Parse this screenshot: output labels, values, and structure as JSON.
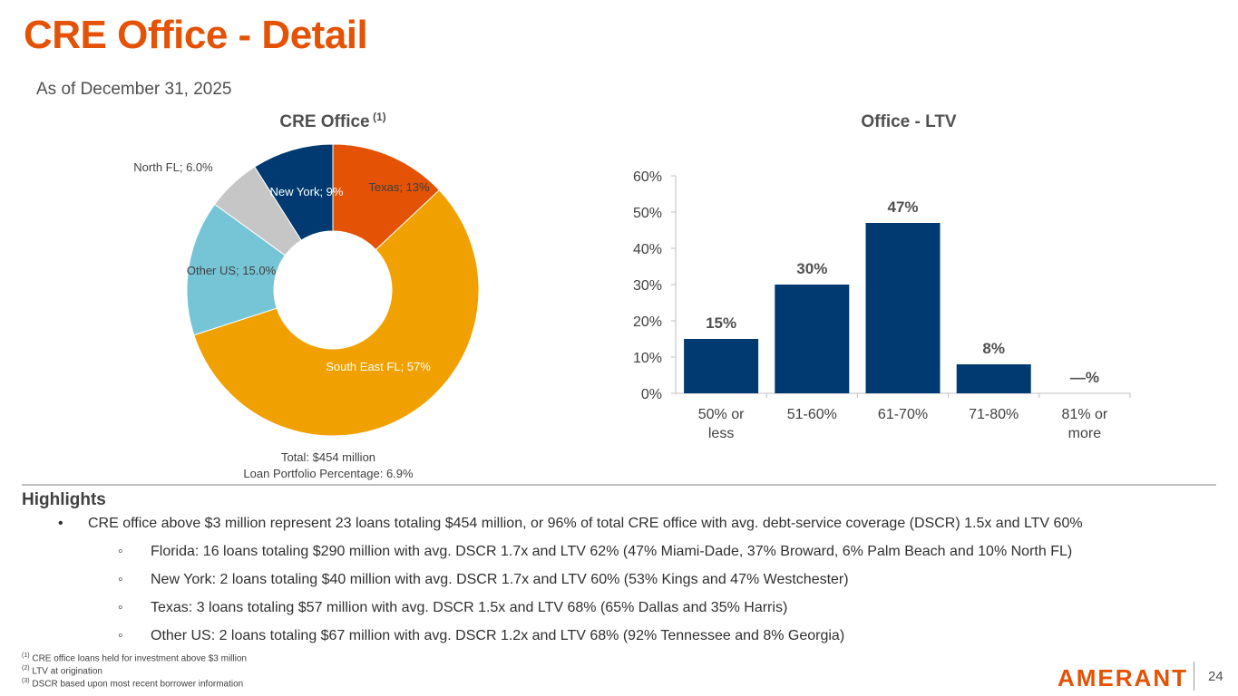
{
  "title": "CRE Office - Detail",
  "as_of": "As of December 31, 2025",
  "chart_data": [
    {
      "type": "pie",
      "title": "CRE Office",
      "title_superscript": "(1)",
      "slices": [
        {
          "label": "Texas; 13%",
          "value": 13,
          "color": "#e35205"
        },
        {
          "label": "South East FL; 57%",
          "value": 57,
          "color": "#f0a100"
        },
        {
          "label": "Other US; 15.0%",
          "value": 15,
          "color": "#76c5d6"
        },
        {
          "label": "North FL; 6.0%",
          "value": 6,
          "color": "#c6c6c6"
        },
        {
          "label": "New York; 9%",
          "value": 9,
          "color": "#003a70"
        }
      ],
      "notes": [
        "Total: $454 million",
        "Loan Portfolio Percentage: 6.9%"
      ]
    },
    {
      "type": "bar",
      "title": "Office - LTV",
      "categories": [
        [
          "50% or",
          "less"
        ],
        [
          "51-60%"
        ],
        [
          "61-70%"
        ],
        [
          "71-80%"
        ],
        [
          "81% or",
          "more"
        ]
      ],
      "values": [
        15,
        30,
        47,
        8,
        0
      ],
      "data_labels": [
        "15%",
        "30%",
        "47%",
        "8%",
        "—%"
      ],
      "ylim": [
        0,
        60
      ],
      "yticks": [
        "0%",
        "10%",
        "20%",
        "30%",
        "40%",
        "50%",
        "60%"
      ],
      "color": "#003a70",
      "grid": false
    }
  ],
  "highlights": {
    "title": "Highlights",
    "main": "CRE office above $3 million represent 23 loans totaling $454 million, or 96% of total CRE office with avg. debt-service coverage (DSCR) 1.5x and LTV 60%",
    "sub": [
      "Florida: 16 loans totaling $290 million  with avg. DSCR 1.7x and LTV 62% (47% Miami-Dade, 37% Broward, 6% Palm Beach and 10% North FL)",
      "New York: 2 loans totaling $40 million with avg. DSCR 1.7x and LTV 60% (53% Kings and 47% Westchester)",
      "Texas: 3 loans totaling $57 million with avg. DSCR 1.5x and LTV 68% (65% Dallas and 35% Harris)",
      "Other US: 2 loans totaling $67 million with avg. DSCR 1.2x and LTV 68% (92% Tennessee and 8% Georgia)"
    ]
  },
  "footnotes": [
    {
      "mark": "(1)",
      "text": "CRE office loans held for investment above $3 million"
    },
    {
      "mark": "(2)",
      "text": "LTV at origination"
    },
    {
      "mark": "(3)",
      "text": "DSCR based upon most recent borrower information"
    }
  ],
  "logo": "AMERANT",
  "page_number": "24"
}
